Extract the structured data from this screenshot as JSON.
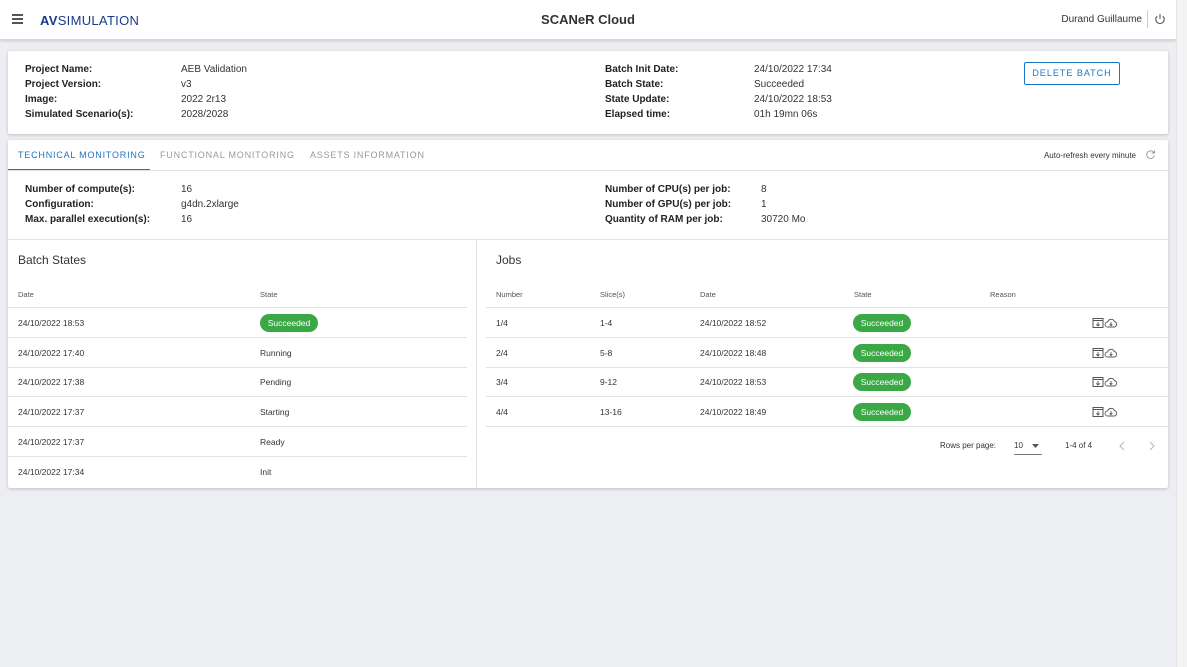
{
  "header": {
    "logo_bold": "AV",
    "logo_rest": "SIMULATION",
    "app_title": "SCANeR Cloud",
    "user_name": "Durand Guillaume"
  },
  "project": {
    "left": [
      {
        "key": "Project Name:",
        "value": "AEB Validation"
      },
      {
        "key": "Project Version:",
        "value": "v3"
      },
      {
        "key": "Image:",
        "value": "2022 2r13"
      },
      {
        "key": "Simulated Scenario(s):",
        "value": "2028/2028"
      }
    ],
    "right": [
      {
        "key": "Batch Init Date:",
        "value": "24/10/2022 17:34"
      },
      {
        "key": "Batch State:",
        "value": "Succeeded"
      },
      {
        "key": "State Update:",
        "value": "24/10/2022 18:53"
      },
      {
        "key": "Elapsed time:",
        "value": "01h 19mn 06s"
      }
    ],
    "delete_label": "DELETE BATCH"
  },
  "tabs": {
    "items": [
      "TECHNICAL MONITORING",
      "FUNCTIONAL MONITORING",
      "ASSETS INFORMATION"
    ],
    "active": "TECHNICAL MONITORING",
    "autorefresh": "Auto-refresh every minute"
  },
  "compute": {
    "left": [
      {
        "key": "Number of compute(s):",
        "value": "16"
      },
      {
        "key": "Configuration:",
        "value": "g4dn.2xlarge"
      },
      {
        "key": "Max. parallel execution(s):",
        "value": "16"
      }
    ],
    "right": [
      {
        "key": "Number of CPU(s) per job:",
        "value": "8"
      },
      {
        "key": "Number of GPU(s) per job:",
        "value": "1"
      },
      {
        "key": "Quantity of RAM per job:",
        "value": "30720 Mo"
      }
    ]
  },
  "batch_states": {
    "title": "Batch States",
    "headers": [
      "Date",
      "State"
    ],
    "rows": [
      {
        "date": "24/10/2022 18:53",
        "state": "Succeeded",
        "badge": true
      },
      {
        "date": "24/10/2022 17:40",
        "state": "Running",
        "badge": false
      },
      {
        "date": "24/10/2022 17:38",
        "state": "Pending",
        "badge": false
      },
      {
        "date": "24/10/2022 17:37",
        "state": "Starting",
        "badge": false
      },
      {
        "date": "24/10/2022 17:37",
        "state": "Ready",
        "badge": false
      },
      {
        "date": "24/10/2022 17:34",
        "state": "Init",
        "badge": false
      }
    ]
  },
  "jobs": {
    "title": "Jobs",
    "headers": [
      "Number",
      "Slice(s)",
      "Date",
      "State",
      "Reason"
    ],
    "rows": [
      {
        "number": "1/4",
        "slices": "1-4",
        "date": "24/10/2022 18:52",
        "state": "Succeeded",
        "reason": ""
      },
      {
        "number": "2/4",
        "slices": "5-8",
        "date": "24/10/2022 18:48",
        "state": "Succeeded",
        "reason": ""
      },
      {
        "number": "3/4",
        "slices": "9-12",
        "date": "24/10/2022 18:53",
        "state": "Succeeded",
        "reason": ""
      },
      {
        "number": "4/4",
        "slices": "13-16",
        "date": "24/10/2022 18:49",
        "state": "Succeeded",
        "reason": ""
      }
    ],
    "row_icons": [
      "web-asset-icon",
      "cloud-download-icon"
    ],
    "rows_per_page_label": "Rows per page:",
    "rows_per_page_value": "10",
    "range": "1-4 of 4"
  },
  "colors": {
    "accent": "#1976c6",
    "success": "#3aa845",
    "logo": "#1a3a8c",
    "background": "#eceef1"
  }
}
